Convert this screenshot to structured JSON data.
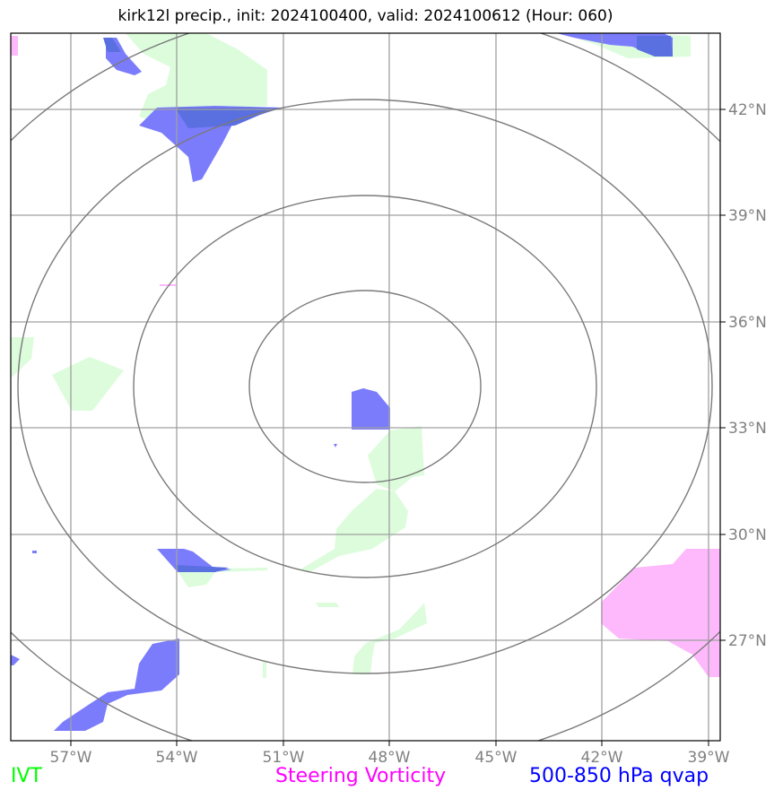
{
  "title": "kirk12l precip., init: 2024100400, valid: 2024100612 (Hour: 060)",
  "lat_labels": [
    "42°N",
    "39°N",
    "36°N",
    "33°N",
    "30°N",
    "27°N"
  ],
  "lon_labels": [
    "57°W",
    "54°W",
    "51°W",
    "48°W",
    "45°W",
    "42°W",
    "39°W"
  ],
  "legend": {
    "ivt": "IVT",
    "steering_vorticity": "Steering Vorticity",
    "qvap": "500-850 hPa qvap"
  },
  "colors": {
    "ivt": "#00ff00",
    "steering_vorticity": "#ff00ff",
    "qvap": "#0000ff",
    "ivt_fill": "#dcfcdc",
    "vorticity_fill": "#fdb9fb",
    "qvap_fill": "#7b7cfc",
    "grid": "#a0a0a0",
    "rings": "#7a7a7a"
  }
}
